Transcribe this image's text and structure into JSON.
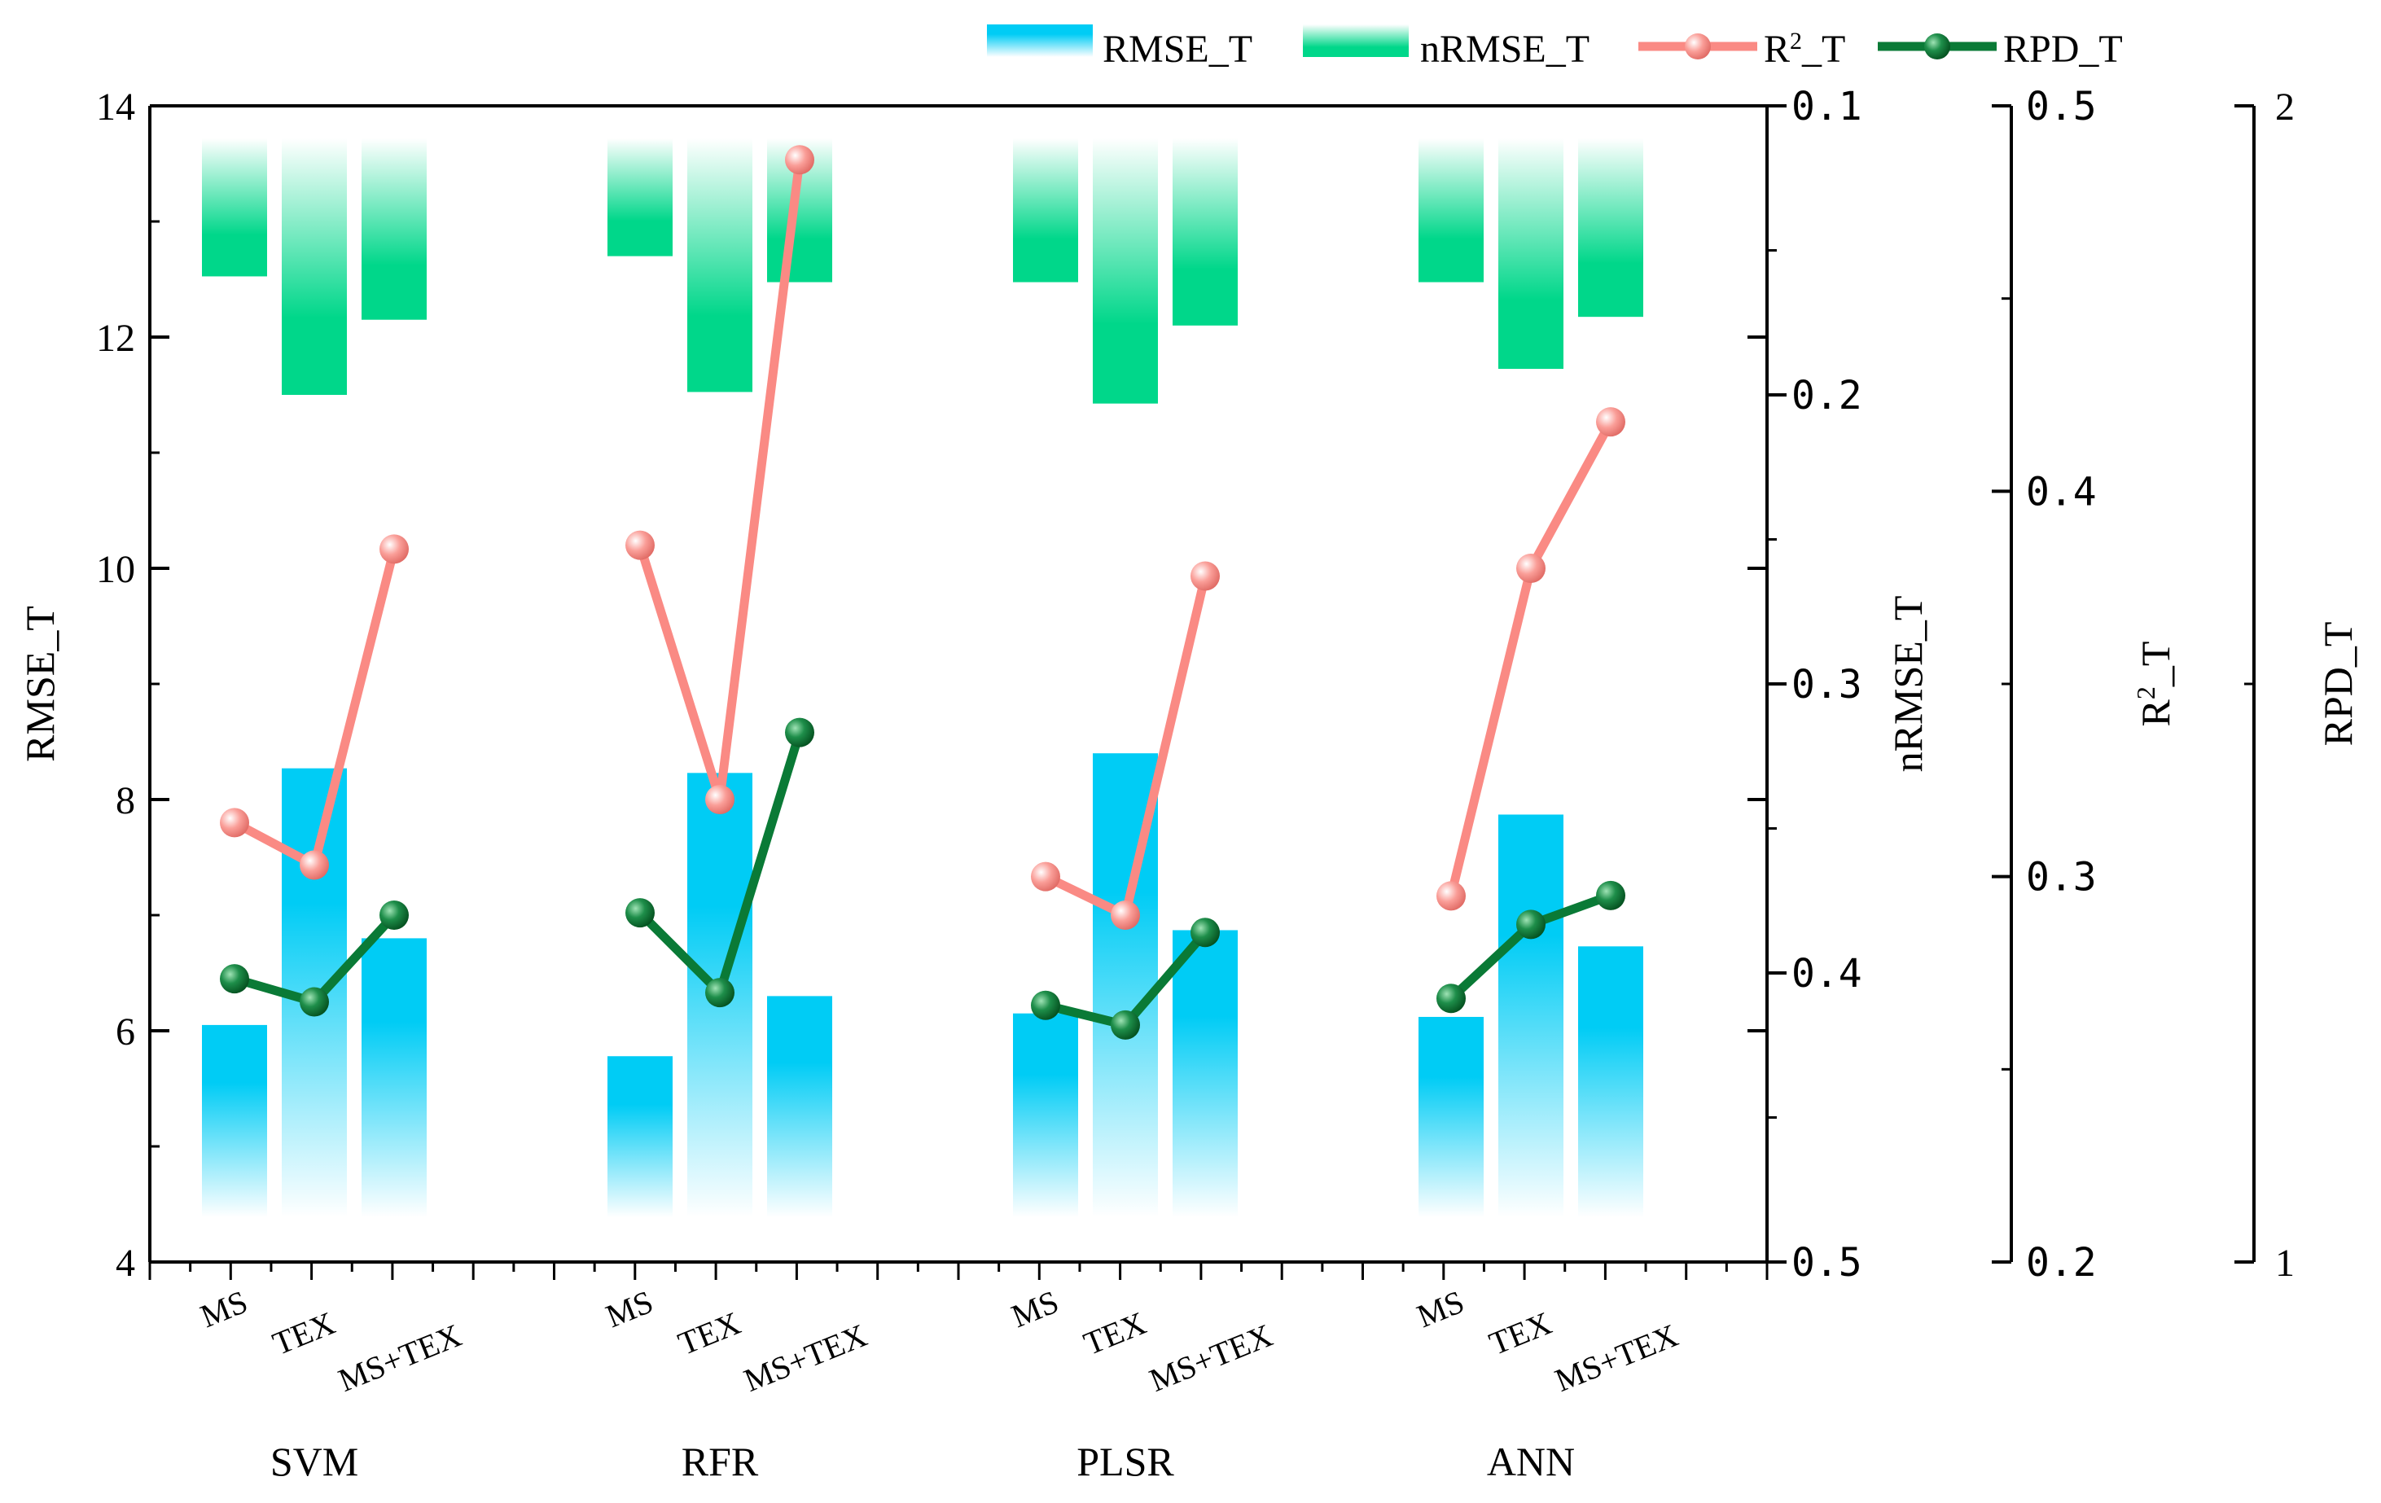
{
  "chart_data": {
    "type": "bar",
    "groups": [
      "SVM",
      "RFR",
      "PLSR",
      "ANN"
    ],
    "categories": [
      "MS",
      "TEX",
      "MS+TEX"
    ],
    "series": [
      {
        "name": "RMSE_T",
        "kind": "bar",
        "axis": "left",
        "color": "#00CCF5",
        "values": [
          [
            6.05,
            8.27,
            6.8
          ],
          [
            5.78,
            8.23,
            6.3
          ],
          [
            6.15,
            8.4,
            6.87
          ],
          [
            6.12,
            7.87,
            6.73
          ]
        ]
      },
      {
        "name": "nRMSE_T",
        "kind": "bar",
        "axis": "right1",
        "color": "#00D78A",
        "values": [
          [
            0.159,
            0.2,
            0.174
          ],
          [
            0.152,
            0.199,
            0.161
          ],
          [
            0.161,
            0.203,
            0.176
          ],
          [
            0.161,
            0.191,
            0.173
          ]
        ]
      },
      {
        "name": "R²_T",
        "kind": "line",
        "axis": "right2",
        "color": "#FA8A84",
        "values": [
          [
            0.314,
            0.303,
            0.385
          ],
          [
            0.386,
            0.32,
            0.486
          ],
          [
            0.3,
            0.29,
            0.378
          ],
          [
            0.295,
            0.38,
            0.418
          ]
        ]
      },
      {
        "name": "RPD_T",
        "kind": "line",
        "axis": "right3",
        "color": "#0A7A36",
        "values": [
          [
            1.245,
            1.225,
            1.3
          ],
          [
            1.302,
            1.233,
            1.458
          ],
          [
            1.222,
            1.205,
            1.285
          ],
          [
            1.228,
            1.292,
            1.317
          ]
        ]
      }
    ],
    "legend": {
      "rmse": "RMSE_T",
      "nrmse": "nRMSE_T",
      "r2_base": "R",
      "r2_sup": "2",
      "r2_tail": "_T",
      "rpd": "RPD_T"
    },
    "axes": {
      "left": {
        "label": "RMSE_T",
        "range": [
          4,
          14
        ],
        "ticks": [
          "4",
          "6",
          "8",
          "10",
          "12",
          "14"
        ]
      },
      "right1": {
        "label": "nRMSE_T",
        "range": [
          0.1,
          0.5
        ],
        "inverted": true,
        "ticks": [
          "0.1",
          "0.2",
          "0.3",
          "0.4",
          "0.5"
        ]
      },
      "right2": {
        "label_base": "R",
        "label_sup": "2",
        "label_tail": "_T",
        "range": [
          0.2,
          0.5
        ],
        "ticks": [
          "0.2",
          "0.3",
          "0.4",
          "0.5"
        ]
      },
      "right3": {
        "label": "RPD_T",
        "range": [
          1,
          2
        ],
        "ticks": [
          "1",
          "2"
        ]
      }
    },
    "legend_position": "top-right"
  }
}
